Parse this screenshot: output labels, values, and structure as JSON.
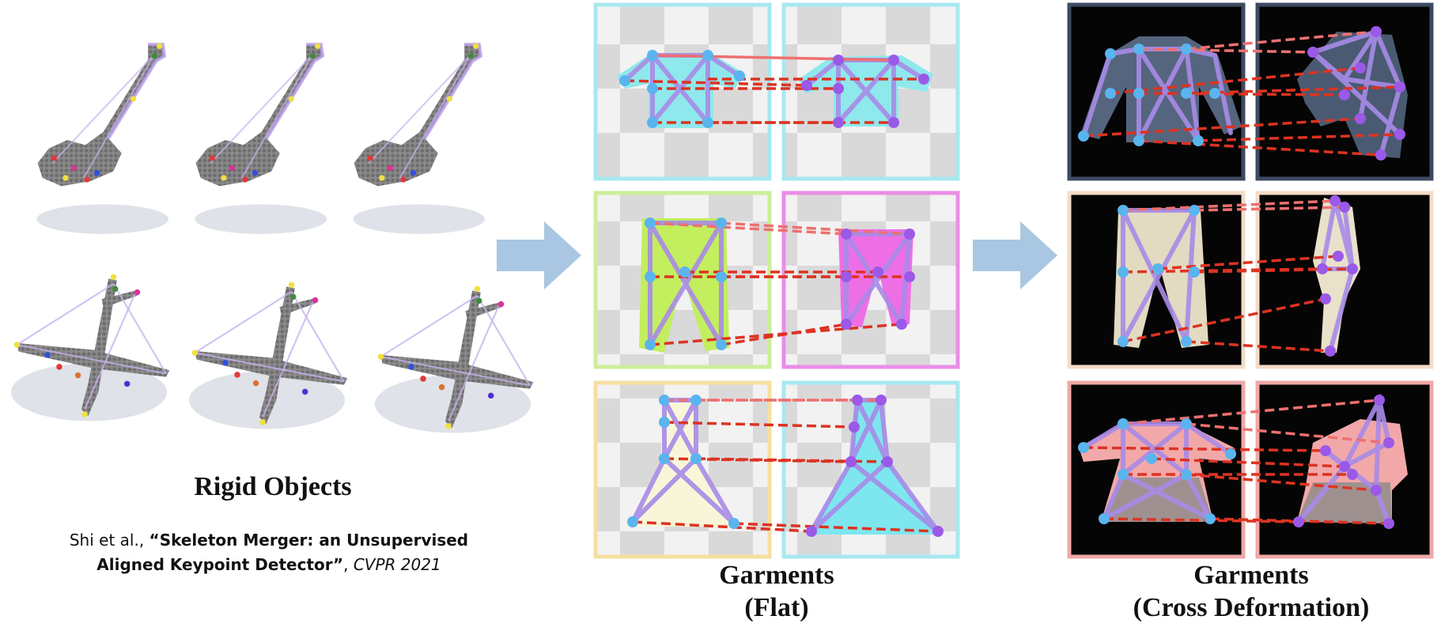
{
  "sections": {
    "rigid": {
      "title": "Rigid Objects",
      "citation": {
        "authors": "Shi et al., ",
        "paper": "“Skeleton Merger: an Unsupervised Aligned Keypoint Detector”",
        "sep": ", ",
        "venue": "CVPR 2021"
      }
    },
    "flat": {
      "title_line1": "Garments",
      "title_line2": "(Flat)"
    },
    "cross": {
      "title_line1": "Garments",
      "title_line2": "(Cross Deformation)"
    }
  },
  "colors": {
    "arrow": "#a9c7e2",
    "keypoint_blue": "#5ab4ee",
    "keypoint_purple": "#9b59e8",
    "match_line": "#dd3322",
    "skeleton": "#a88be8",
    "point_cloud": "#7d7d7d",
    "frame_cyan": "#a8e8f0",
    "frame_green": "#cdee9a",
    "frame_pink": "#ea8ee6",
    "frame_yellow": "#f6dfa0",
    "frame_navy": "#3c4a62",
    "frame_beige": "#f3dcc9",
    "frame_salmon": "#f0a8a8"
  },
  "icons": [
    "guitar-point-cloud",
    "airplane-point-cloud",
    "shirt-icon",
    "pants-icon",
    "dress-icon",
    "arrow-right-icon"
  ]
}
